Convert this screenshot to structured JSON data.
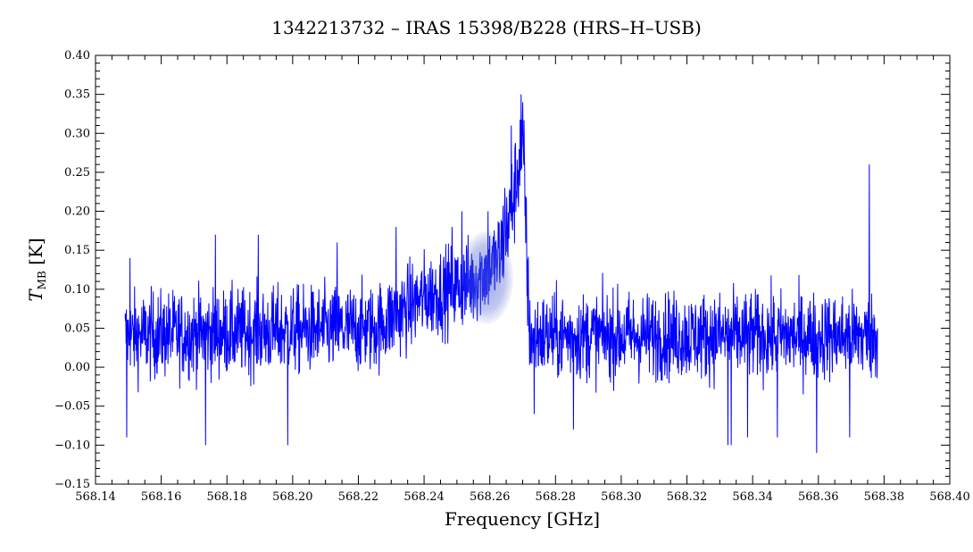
{
  "chart_data": {
    "type": "line",
    "title": "1342213732 – IRAS 15398/B228 (HRS–H–USB)",
    "xlabel": "Frequency [GHz]",
    "ylabel_main": "T",
    "ylabel_sub": "MB",
    "ylabel_unit": "[K]",
    "xlim": [
      568.14,
      568.4
    ],
    "ylim": [
      -0.15,
      0.4
    ],
    "x_ticks": [
      "568.14",
      "568.16",
      "568.18",
      "568.20",
      "568.22",
      "568.24",
      "568.26",
      "568.28",
      "568.30",
      "568.32",
      "568.34",
      "568.36",
      "568.38",
      "568.40"
    ],
    "y_ticks": [
      "−0.15",
      "−0.10",
      "−0.05",
      "0.00",
      "0.05",
      "0.10",
      "0.15",
      "0.20",
      "0.25",
      "0.30",
      "0.35",
      "0.40"
    ],
    "grid": false,
    "series": [
      {
        "color": "#0000ff",
        "x_start": 568.149,
        "x_end": 568.378,
        "profile": [
          [
            568.149,
            0.04
          ],
          [
            568.225,
            0.05
          ],
          [
            568.24,
            0.09
          ],
          [
            568.255,
            0.11
          ],
          [
            568.263,
            0.14
          ],
          [
            568.267,
            0.21
          ],
          [
            568.2695,
            0.28
          ],
          [
            568.2705,
            0.25
          ],
          [
            568.272,
            0.04
          ],
          [
            568.378,
            0.04
          ]
        ],
        "noise_amplitude": 0.05,
        "peaks": [
          [
            568.1495,
            -0.09
          ],
          [
            568.1505,
            0.14
          ],
          [
            568.1735,
            -0.1
          ],
          [
            568.1765,
            0.17
          ],
          [
            568.1985,
            -0.1
          ],
          [
            568.1895,
            0.17
          ],
          [
            568.2135,
            0.16
          ],
          [
            568.2315,
            0.18
          ],
          [
            568.2485,
            0.18
          ],
          [
            568.2515,
            0.2
          ],
          [
            568.2595,
            0.2
          ],
          [
            568.2645,
            0.23
          ],
          [
            568.2665,
            0.31
          ],
          [
            568.2695,
            0.35
          ],
          [
            568.27,
            0.34
          ],
          [
            568.2735,
            -0.06
          ],
          [
            568.2855,
            -0.08
          ],
          [
            568.3325,
            -0.1
          ],
          [
            568.3335,
            -0.1
          ],
          [
            568.3385,
            -0.09
          ],
          [
            568.3475,
            -0.09
          ],
          [
            568.3595,
            -0.11
          ],
          [
            568.3755,
            0.26
          ],
          [
            568.3695,
            -0.09
          ]
        ]
      }
    ],
    "highlight": {
      "x": 568.259,
      "y": 0.115,
      "color": "#3a4fc4"
    }
  }
}
